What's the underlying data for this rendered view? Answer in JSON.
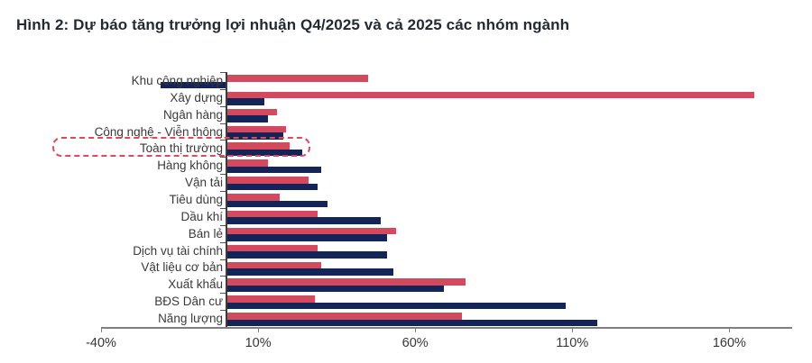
{
  "title": "Hình 2: Dự báo tăng trưởng lợi nhuận Q4/2025 và cả 2025 các nhóm ngành",
  "chart_data": {
    "type": "bar",
    "orientation": "horizontal",
    "title": "Hình 2: Dự báo tăng trưởng lợi nhuận Q4/2025 và cả 2025 các nhóm ngành",
    "xlabel": "",
    "ylabel": "",
    "unit": "%",
    "grid": false,
    "legend_position": "none",
    "categories": [
      "Khu công nghiệp",
      "Xây dựng",
      "Ngân hàng",
      "Công nghệ - Viễn thông",
      "Toàn thị trường",
      "Hàng không",
      "Vận tải",
      "Tiêu dùng",
      "Dầu khí",
      "Bán lẻ",
      "Dịch vụ tài chính",
      "Vật liệu cơ bản",
      "Xuất khẩu",
      "BĐS Dân cư",
      "Năng lượng"
    ],
    "series": [
      {
        "name": "red-series",
        "color": "#d5495f",
        "values": [
          45,
          168,
          16,
          19,
          20,
          13,
          26,
          17,
          29,
          54,
          29,
          30,
          76,
          28,
          75
        ]
      },
      {
        "name": "navy-series",
        "color": "#132459",
        "values": [
          -21,
          12,
          13,
          18,
          24,
          30,
          29,
          32,
          49,
          51,
          51,
          53,
          69,
          108,
          118
        ]
      }
    ],
    "x_tick_labels": [
      "-40%",
      "10%",
      "60%",
      "110%",
      "160%"
    ],
    "x_tick_values": [
      -40,
      10,
      60,
      110,
      160
    ],
    "xlim": [
      -40,
      180
    ],
    "highlight": {
      "category": "Toàn thị trường",
      "category_index": 4,
      "style": "dashed rounded box",
      "color": "#e0495c"
    }
  },
  "colors": {
    "background": "#ffffff",
    "title_text": "#222a33",
    "label_text": "#3a3a3a",
    "axis_line": "#7f7f7f",
    "category_axis_line": "#3d3d3d"
  }
}
